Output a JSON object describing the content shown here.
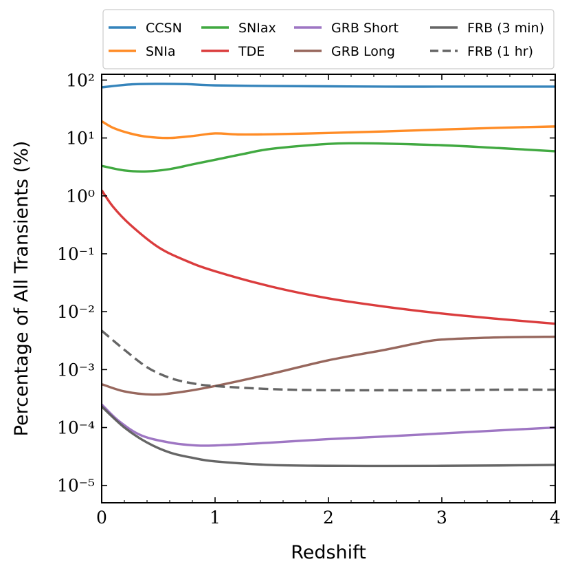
{
  "chart_data": {
    "type": "line",
    "title": "",
    "xlabel": "Redshift",
    "ylabel": "Percentage of All Transients (%)",
    "xlim": [
      0,
      4
    ],
    "ylim_log10": [
      -5.3,
      2.1
    ],
    "yscale": "log",
    "x_ticks": [
      0,
      1,
      2,
      3,
      4
    ],
    "x_tick_labels": [
      "0",
      "1",
      "2",
      "3",
      "4"
    ],
    "y_ticks_log10": [
      2,
      1,
      0,
      -1,
      -2,
      -3,
      -4,
      -5
    ],
    "y_tick_labels": [
      "10²",
      "10¹",
      "10⁰",
      "10⁻¹",
      "10⁻²",
      "10⁻³",
      "10⁻⁴",
      "10⁻⁵"
    ],
    "legend_position": "top (outside, above axes)",
    "series": [
      {
        "name": "CCSN",
        "color": "#1f77b4",
        "dash": "solid",
        "x": [
          0,
          0.25,
          0.5,
          0.75,
          1.0,
          1.5,
          2.0,
          2.5,
          3.0,
          3.5,
          4.0
        ],
        "y": [
          75,
          84,
          86,
          85,
          81,
          79,
          78,
          77,
          77,
          77,
          77
        ]
      },
      {
        "name": "SNIa",
        "color": "#ff7f0e",
        "dash": "solid",
        "x": [
          0,
          0.1,
          0.25,
          0.4,
          0.6,
          0.8,
          1.0,
          1.2,
          1.5,
          2.0,
          2.5,
          3.0,
          3.5,
          4.0
        ],
        "y": [
          19.5,
          15,
          12,
          10.5,
          10,
          10.8,
          12,
          11.5,
          11.6,
          12.2,
          13,
          14,
          15,
          15.8
        ]
      },
      {
        "name": "SNIax",
        "color": "#2ca02c",
        "dash": "solid",
        "x": [
          0,
          0.2,
          0.4,
          0.6,
          0.8,
          1.0,
          1.25,
          1.5,
          2.0,
          2.25,
          2.5,
          3.0,
          3.5,
          4.0
        ],
        "y": [
          3.3,
          2.75,
          2.65,
          2.9,
          3.5,
          4.2,
          5.3,
          6.5,
          7.9,
          8.1,
          8.0,
          7.5,
          6.7,
          5.9
        ]
      },
      {
        "name": "TDE",
        "color": "#d62728",
        "dash": "solid",
        "x": [
          0,
          0.1,
          0.25,
          0.5,
          0.75,
          1.0,
          1.5,
          2.0,
          2.5,
          3.0,
          3.5,
          4.0
        ],
        "y": [
          1.25,
          0.65,
          0.32,
          0.13,
          0.075,
          0.05,
          0.027,
          0.017,
          0.0122,
          0.0093,
          0.0075,
          0.0062
        ]
      },
      {
        "name": "GRB Short",
        "color": "#9467bd",
        "dash": "solid",
        "x": [
          0,
          0.15,
          0.35,
          0.6,
          0.8,
          1.0,
          1.5,
          2.0,
          2.5,
          3.0,
          3.5,
          4.0
        ],
        "y": [
          0.00025,
          0.00013,
          7.3e-05,
          5.5e-05,
          4.95e-05,
          4.9e-05,
          5.5e-05,
          6.3e-05,
          7e-05,
          7.9e-05,
          8.9e-05,
          0.0001
        ]
      },
      {
        "name": "GRB Long",
        "color": "#8c564b",
        "dash": "solid",
        "x": [
          0,
          0.2,
          0.45,
          0.7,
          1.0,
          1.5,
          2.0,
          2.5,
          2.8,
          3.0,
          3.5,
          4.0
        ],
        "y": [
          0.00056,
          0.00042,
          0.00037,
          0.00041,
          0.00052,
          0.00085,
          0.00145,
          0.0022,
          0.0029,
          0.0033,
          0.0036,
          0.0037
        ]
      },
      {
        "name": "FRB (3 min)",
        "color": "#555555",
        "dash": "solid",
        "x": [
          0,
          0.2,
          0.4,
          0.6,
          0.8,
          1.0,
          1.5,
          2.0,
          2.5,
          3.0,
          3.5,
          4.0
        ],
        "y": [
          0.00023,
          0.0001,
          5.5e-05,
          3.7e-05,
          3e-05,
          2.6e-05,
          2.25e-05,
          2.18e-05,
          2.17e-05,
          2.18e-05,
          2.21e-05,
          2.26e-05
        ]
      },
      {
        "name": "FRB (1 hr)",
        "color": "#555555",
        "dash": "dashed",
        "x": [
          0,
          0.2,
          0.4,
          0.6,
          0.8,
          1.0,
          1.5,
          2.0,
          2.5,
          3.0,
          3.5,
          4.0
        ],
        "y": [
          0.0047,
          0.0022,
          0.0011,
          0.00072,
          0.00058,
          0.00052,
          0.00046,
          0.00044,
          0.00044,
          0.00044,
          0.00045,
          0.00045
        ]
      }
    ]
  }
}
